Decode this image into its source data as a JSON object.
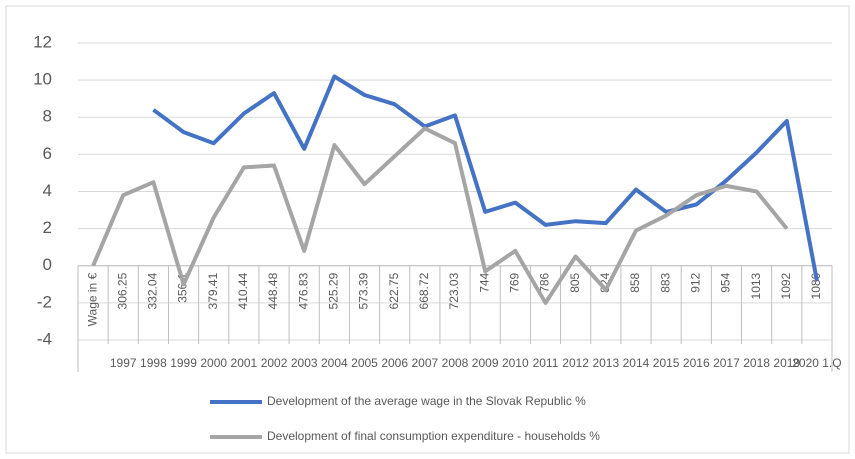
{
  "chart_data": {
    "type": "line",
    "categories": [
      "Wage in €",
      "306.25",
      "332.04",
      "356.1",
      "379.41",
      "410.44",
      "448.48",
      "476.83",
      "525.29",
      "573.39",
      "622.75",
      "668.72",
      "723.03",
      "744",
      "769",
      "786",
      "805",
      "824",
      "858",
      "883",
      "912",
      "954",
      "1013",
      "1092",
      "1086"
    ],
    "category_groups": [
      null,
      "1997",
      "1998",
      "1999",
      "2000",
      "2001",
      "2002",
      "2003",
      "2004",
      "2005",
      "2006",
      "2007",
      "2008",
      "2009",
      "2010",
      "2011",
      "2012",
      "2013",
      "2014",
      "2015",
      "2016",
      "2017",
      "2018",
      "2019",
      "2020 1.Q"
    ],
    "series": [
      {
        "name": "Development of the average wage in the Slovak Republic %",
        "color": "#4472c4",
        "values": [
          null,
          null,
          8.4,
          7.2,
          6.6,
          8.2,
          9.3,
          6.3,
          10.2,
          9.2,
          8.7,
          7.5,
          8.1,
          2.9,
          3.4,
          2.2,
          2.4,
          2.3,
          4.1,
          2.9,
          3.3,
          4.6,
          6.1,
          7.8,
          -0.8
        ]
      },
      {
        "name": "Development of final consumption expenditure - households %",
        "color": "#a5a5a5",
        "values": [
          0,
          3.8,
          4.5,
          -1.0,
          2.6,
          5.3,
          5.4,
          0.8,
          6.5,
          4.4,
          5.9,
          7.4,
          6.6,
          -0.3,
          0.8,
          -2.0,
          0.5,
          -1.3,
          1.9,
          2.7,
          3.8,
          4.3,
          4.0,
          2.0,
          null
        ]
      }
    ],
    "ylim": [
      -4,
      12
    ],
    "yticks": [
      -4,
      -2,
      0,
      2,
      4,
      6,
      8,
      10,
      12
    ],
    "grid": true
  }
}
